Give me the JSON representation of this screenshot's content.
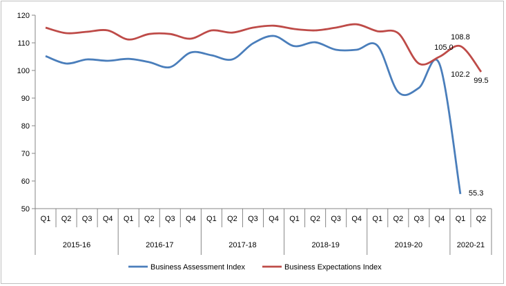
{
  "chart_data": {
    "type": "line",
    "title": "",
    "xlabel": "",
    "ylabel": "",
    "ylim": [
      50,
      120
    ],
    "yticks": [
      50,
      60,
      70,
      80,
      90,
      100,
      110,
      120
    ],
    "grid": false,
    "legend_placement": "bottom",
    "categories": [
      "Q1",
      "Q2",
      "Q3",
      "Q4",
      "Q1",
      "Q2",
      "Q3",
      "Q4",
      "Q1",
      "Q2",
      "Q3",
      "Q4",
      "Q1",
      "Q2",
      "Q3",
      "Q4",
      "Q1",
      "Q2",
      "Q3",
      "Q4",
      "Q1",
      "Q2"
    ],
    "groups": [
      {
        "label": "2015-16",
        "count": 4
      },
      {
        "label": "2016-17",
        "count": 4
      },
      {
        "label": "2017-18",
        "count": 4
      },
      {
        "label": "2018-19",
        "count": 4
      },
      {
        "label": "2019-20",
        "count": 4
      },
      {
        "label": "2020-21",
        "count": 2
      }
    ],
    "series": [
      {
        "name": "Business Assessment Index",
        "color": "#4a7ebb",
        "values": [
          105.2,
          102.5,
          104.0,
          103.5,
          104.2,
          103.0,
          101.2,
          106.5,
          105.5,
          104.0,
          109.8,
          112.5,
          108.8,
          110.2,
          107.5,
          107.5,
          109.0,
          92.2,
          93.7,
          102.2,
          55.3,
          null
        ],
        "labels": {
          "19": "102.2",
          "20": "55.3"
        }
      },
      {
        "name": "Business Expectations Index",
        "color": "#be4b48",
        "values": [
          115.5,
          113.5,
          114.0,
          114.5,
          111.2,
          113.2,
          113.2,
          111.5,
          114.5,
          113.7,
          115.5,
          116.2,
          115.0,
          114.5,
          115.5,
          116.7,
          114.2,
          113.5,
          102.5,
          105.0,
          108.8,
          99.5
        ],
        "labels": {
          "19": "105.0",
          "20": "108.8",
          "21": "99.5"
        }
      }
    ]
  }
}
